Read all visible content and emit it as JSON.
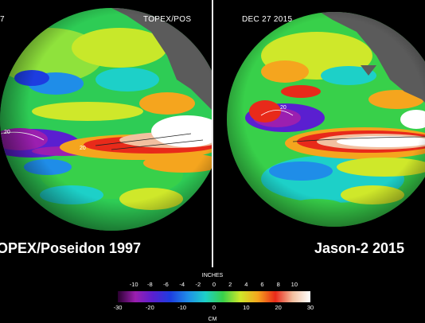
{
  "left_panel": {
    "top_left_fragment": "7",
    "top_right_label": "TOPEX/POS",
    "caption": "OPEX/Poseidon 1997",
    "contour_labels": [
      "20",
      "20"
    ]
  },
  "right_panel": {
    "date_label": "DEC 27  2015",
    "caption": "Jason-2 2015",
    "contour_labels": [
      "20",
      "20"
    ]
  },
  "colorbar": {
    "title": "INCHES",
    "unit": "CM",
    "inch_ticks": [
      "-10",
      "-8",
      "-6",
      "-4",
      "-2",
      "0",
      "2",
      "4",
      "6",
      "8",
      "10"
    ],
    "cm_ticks": [
      "-30",
      "-20",
      "-10",
      "0",
      "10",
      "20",
      "30"
    ],
    "inch_range": [
      -12,
      12
    ],
    "cm_range": [
      -30,
      30
    ],
    "stops": [
      "#2a0030",
      "#9b1fb0",
      "#5a1fd0",
      "#1d3de0",
      "#1f8de8",
      "#1dd0c8",
      "#38d04a",
      "#cfe82a",
      "#f5a51e",
      "#e82a1a",
      "#f2c0a0",
      "#ffffff"
    ]
  },
  "colors": {
    "background": "#000000",
    "land": "#5b5b5b",
    "divider": "#e8e8e8"
  }
}
